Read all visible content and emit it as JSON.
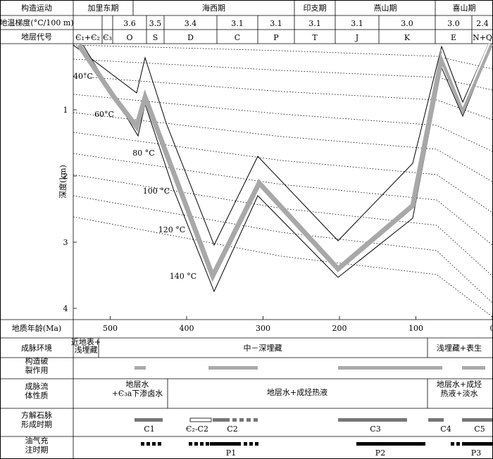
{
  "rows": {
    "tectonic": "构造运动",
    "gradient": "地温梯度(°C/100 m)",
    "strata": "地层代号",
    "depth_axis": "深度(km)",
    "age": "地质年龄(Ma)",
    "env": "成脉环境",
    "fault": "构造破\n裂作用",
    "fluid": "成脉流\n体性质",
    "calcite": "方解石脉\n形成时期",
    "oil": "油气充\n注时期"
  },
  "tectonic_periods": [
    "加里东期",
    "海西期",
    "印支期",
    "燕山期",
    "喜山期"
  ],
  "gradients": [
    "3.6",
    "3.5",
    "3.4",
    "3.1",
    "3.1",
    "3.1",
    "3.1",
    "3.0",
    "3.0",
    "2.4"
  ],
  "strata_codes": [
    "Є₁+Є₂",
    "Є₃",
    "O",
    "S",
    "D",
    "C",
    "P",
    "T",
    "J",
    "K",
    "E",
    "N+Q"
  ],
  "depth_ticks": [
    "1",
    "2",
    "3",
    "4"
  ],
  "age_ticks": [
    "500",
    "400",
    "300",
    "200",
    "100",
    "0"
  ],
  "isotherms": [
    "40°C",
    "60°C",
    "80 °C",
    "100 °C",
    "120 °C",
    "140 °C"
  ],
  "env": [
    "近地表+\n浅埋藏",
    "中－深埋藏",
    "浅埋藏+表生"
  ],
  "fluid": [
    "地层水\n+Є₃a下渗卤水",
    "地层水+成烃热液",
    "地层水+成烃\n热液+淡水"
  ],
  "calcite": [
    "C1",
    "Є₂-C2",
    "C2",
    "C3",
    "C4",
    "C5"
  ],
  "oil": [
    "P1",
    "P2",
    "P3"
  ]
}
